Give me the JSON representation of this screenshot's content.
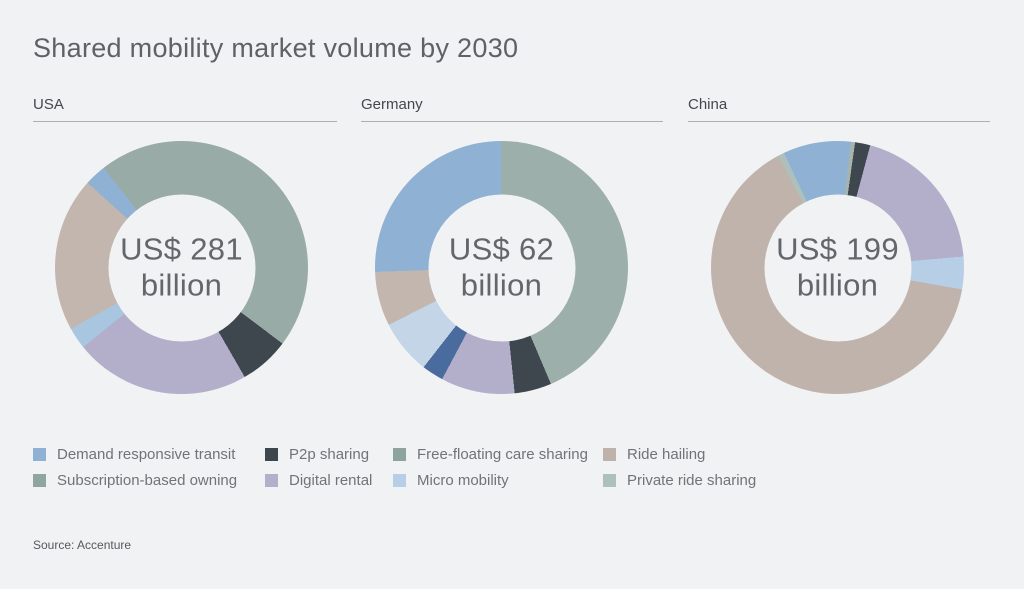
{
  "title": "Shared mobility market volume by 2030",
  "source": "Source: Accenture",
  "legend": {
    "items": [
      {
        "label": "Demand responsive transit",
        "color": "#8fb1d4"
      },
      {
        "label": "P2p sharing",
        "color": "#3e464e"
      },
      {
        "label": "Free-floating care sharing",
        "color": "#8fa39e"
      },
      {
        "label": "Ride hailing",
        "color": "#bfb2ab"
      },
      {
        "label": "Subscription-based owning",
        "color": "#91a5a0"
      },
      {
        "label": "Digital rental",
        "color": "#b3aec9"
      },
      {
        "label": "Micro mobility",
        "color": "#b7cfe6"
      },
      {
        "label": "Private ride sharing",
        "color": "#aec0bb"
      }
    ]
  },
  "chart_data": [
    {
      "type": "pie",
      "variant": "donut",
      "country": "USA",
      "center_value": "US$ 281",
      "center_unit": "billion",
      "total_label": "US$ 281 billion",
      "start_deg": -38,
      "segments": [
        {
          "label": "Subscription-based owning",
          "color": "#99aba6",
          "deg": 165,
          "pct_est": 45.8
        },
        {
          "label": "P2p sharing",
          "color": "#3e464e",
          "deg": 23,
          "pct_est": 6.4
        },
        {
          "label": "Digital rental",
          "color": "#b3aec9",
          "deg": 81,
          "pct_est": 22.5
        },
        {
          "label": "Micro mobility",
          "color": "#a9c6e0",
          "deg": 10,
          "pct_est": 2.8
        },
        {
          "label": "Ride hailing",
          "color": "#c3b6af",
          "deg": 71,
          "pct_est": 19.7
        },
        {
          "label": "Demand responsive transit",
          "color": "#8fb1d4",
          "deg": 10,
          "pct_est": 2.8
        }
      ]
    },
    {
      "type": "pie",
      "variant": "donut",
      "country": "Germany",
      "center_value": "US$ 62",
      "center_unit": "billion",
      "total_label": "US$ 62 billion",
      "start_deg": 0,
      "segments": [
        {
          "label": "Free-floating care sharing",
          "color": "#9cafaa",
          "deg": 157,
          "pct_est": 43.6
        },
        {
          "label": "P2p sharing",
          "color": "#3e464e",
          "deg": 17,
          "pct_est": 4.7
        },
        {
          "label": "Digital rental",
          "color": "#b3aec9",
          "deg": 34,
          "pct_est": 9.4
        },
        {
          "label": "(not in legend)",
          "color": "#4a6b9d",
          "deg": 10,
          "pct_est": 2.8
        },
        {
          "label": "Micro mobility",
          "color": "#c3d5e7",
          "deg": 25,
          "pct_est": 6.9
        },
        {
          "label": "Ride hailing",
          "color": "#c3b6af",
          "deg": 25,
          "pct_est": 6.9
        },
        {
          "label": "Demand responsive transit",
          "color": "#8fb1d4",
          "deg": 92,
          "pct_est": 25.6
        }
      ]
    },
    {
      "type": "pie",
      "variant": "donut",
      "country": "China",
      "center_value": "US$ 199",
      "center_unit": "billion",
      "total_label": "US$ 199 billion",
      "start_deg": -25,
      "segments": [
        {
          "label": "Demand responsive transit",
          "color": "#8fb1d4",
          "deg": 31,
          "pct_est": 8.6
        },
        {
          "label": "Free-floating care sharing",
          "color": "#a5b5ae",
          "deg": 2,
          "pct_est": 0.6
        },
        {
          "label": "P2p sharing",
          "color": "#3e464e",
          "deg": 7,
          "pct_est": 1.9
        },
        {
          "label": "Digital rental",
          "color": "#b3aec9",
          "deg": 70,
          "pct_est": 19.4
        },
        {
          "label": "Micro mobility",
          "color": "#b7cfe6",
          "deg": 15,
          "pct_est": 4.2
        },
        {
          "label": "Ride hailing",
          "color": "#c0b3ac",
          "deg": 232,
          "pct_est": 64.4
        },
        {
          "label": "Private ride sharing",
          "color": "#aec0bb",
          "deg": 3,
          "pct_est": 0.8
        }
      ]
    }
  ]
}
